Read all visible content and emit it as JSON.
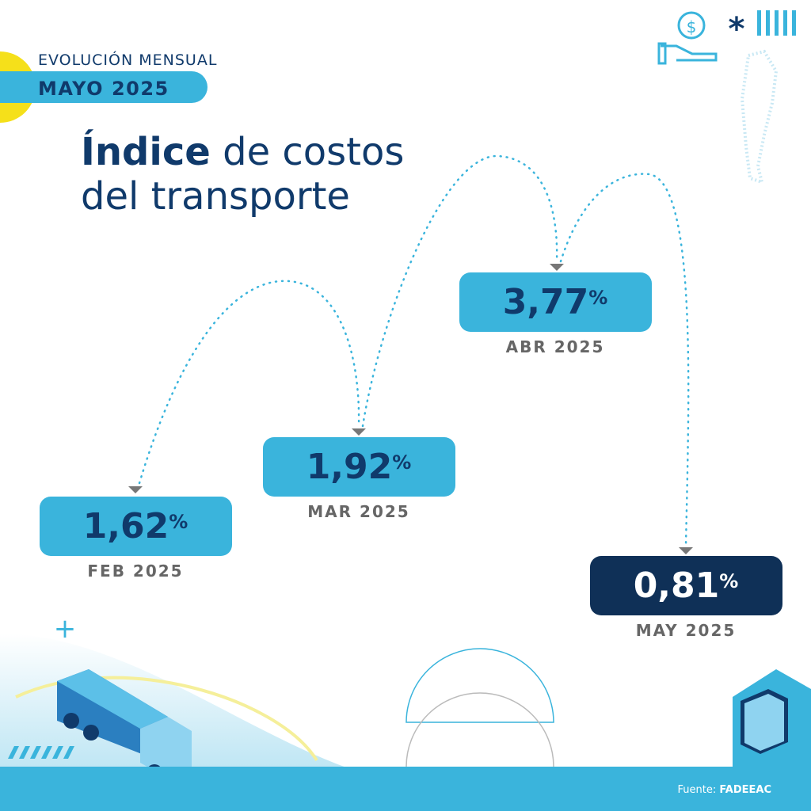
{
  "header": {
    "kicker": "EVOLUCIÓN MENSUAL",
    "period": "MAYO 2025"
  },
  "title": {
    "line1_bold": "Índice",
    "line1_rest": "de costos",
    "line2": "del transporte"
  },
  "items": [
    {
      "value": "1,62",
      "unit": "%",
      "label": "FEB 2025"
    },
    {
      "value": "1,92",
      "unit": "%",
      "label": "MAR 2025"
    },
    {
      "value": "3,77",
      "unit": "%",
      "label": "ABR 2025"
    },
    {
      "value": "0,81",
      "unit": "%",
      "label": "MAY 2025"
    }
  ],
  "source": {
    "label": "Fuente:",
    "name": "FADEEAC"
  }
}
